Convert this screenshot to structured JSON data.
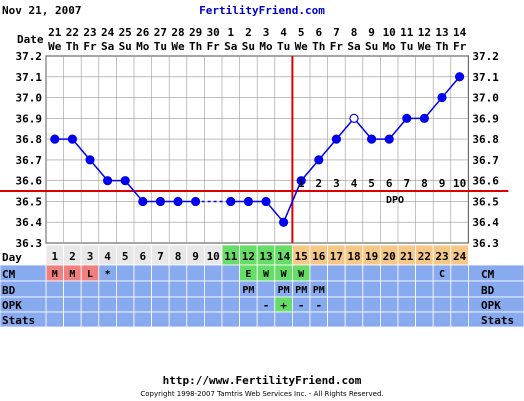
{
  "header": {
    "date_label": "Nov 21, 2007",
    "site": "FertilityFriend.com"
  },
  "footer": {
    "url": "http://www.FertilityFriend.com",
    "copyright": "Copyright 1998-2007 Tamtris Web Services Inc. - All Rights Reserved."
  },
  "row_labels": {
    "date": "Date",
    "day": "Day",
    "cm": "CM",
    "bd": "BD",
    "opk": "OPK",
    "stats": "Stats"
  },
  "dpo_label": "DPO",
  "colors": {
    "line": "#0000ee",
    "grid": "#999999",
    "coverline": "#dd0000",
    "menses": "#f08080",
    "fertile": "#66dd66",
    "luteal": "#f5c888",
    "day_default": "#e8e8e8",
    "row_bg": "#88aaee"
  },
  "chart_data": {
    "type": "line",
    "y_ticks": [
      "36.3",
      "36.4",
      "36.5",
      "36.6",
      "36.7",
      "36.8",
      "36.9",
      "37.0",
      "37.1",
      "37.2"
    ],
    "ylim": [
      36.3,
      37.2
    ],
    "dates": [
      "21",
      "22",
      "23",
      "24",
      "25",
      "26",
      "27",
      "28",
      "29",
      "30",
      "1",
      "2",
      "3",
      "4",
      "5",
      "6",
      "7",
      "8",
      "9",
      "10",
      "11",
      "12",
      "13",
      "14"
    ],
    "weekdays": [
      "We",
      "Th",
      "Fr",
      "Sa",
      "Su",
      "Mo",
      "Tu",
      "We",
      "Th",
      "Fr",
      "Sa",
      "Su",
      "Mo",
      "Tu",
      "We",
      "Th",
      "Fr",
      "Sa",
      "Su",
      "Mo",
      "Tu",
      "We",
      "Th",
      "Fr"
    ],
    "cycle_days": [
      "1",
      "2",
      "3",
      "4",
      "5",
      "6",
      "7",
      "8",
      "9",
      "10",
      "11",
      "12",
      "13",
      "14",
      "15",
      "16",
      "17",
      "18",
      "19",
      "20",
      "21",
      "22",
      "23",
      "24"
    ],
    "temps": [
      36.8,
      36.8,
      36.7,
      36.6,
      36.6,
      36.5,
      36.5,
      36.5,
      36.5,
      null,
      36.5,
      36.5,
      36.5,
      36.4,
      36.6,
      36.7,
      36.8,
      36.9,
      36.8,
      36.8,
      36.9,
      36.9,
      37.0,
      37.1
    ],
    "open_points": [
      17
    ],
    "coverline": 36.55,
    "ovulation_day": 14,
    "dpo": [
      "1",
      "2",
      "3",
      "4",
      "5",
      "6",
      "7",
      "8",
      "9",
      "10"
    ],
    "cm": [
      "M",
      "M",
      "L",
      "*",
      "",
      "",
      "",
      "",
      "",
      "",
      "",
      "E",
      "W",
      "W",
      "W",
      "",
      "",
      "",
      "",
      "",
      "",
      "",
      "C",
      ""
    ],
    "bd": [
      "",
      "",
      "",
      "",
      "",
      "",
      "",
      "",
      "",
      "",
      "",
      "PM",
      "",
      "PM",
      "PM",
      "PM",
      "",
      "",
      "",
      "",
      "",
      "",
      "",
      ""
    ],
    "opk": [
      "",
      "",
      "",
      "",
      "",
      "",
      "",
      "",
      "",
      "",
      "",
      "",
      "-",
      "+",
      "-",
      "-",
      "",
      "",
      "",
      "",
      "",
      "",
      "",
      ""
    ]
  }
}
